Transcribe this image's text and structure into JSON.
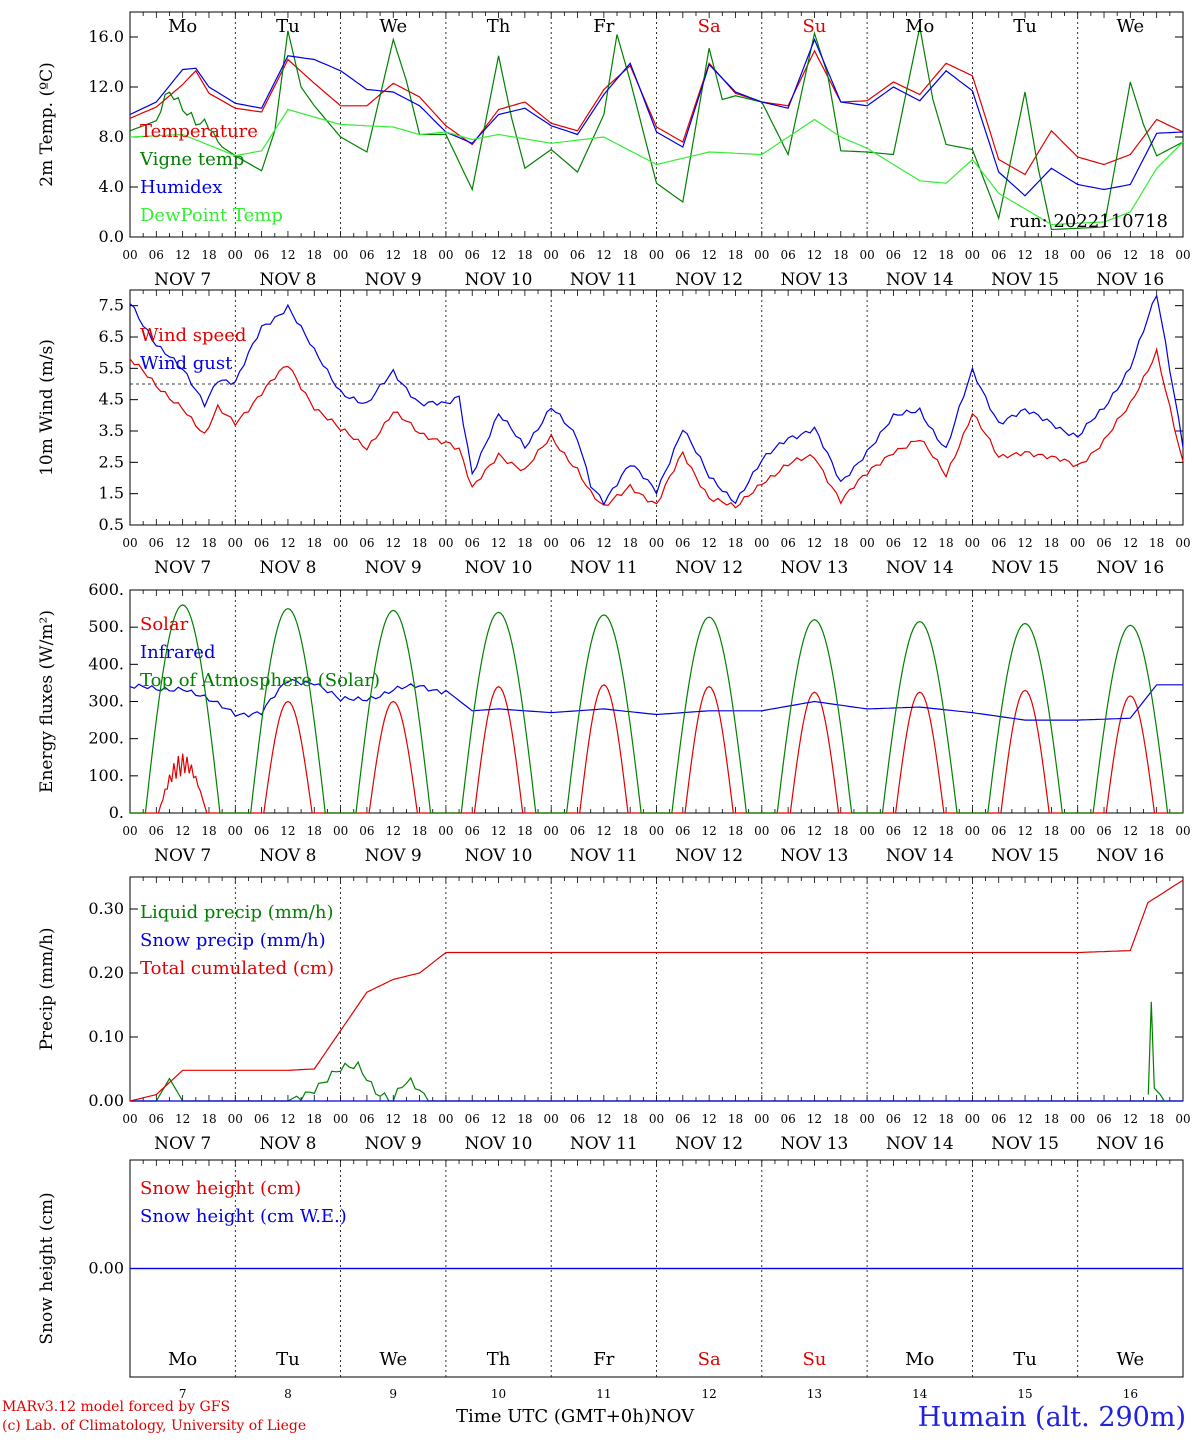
{
  "run_label": "run: 2022110718",
  "days": [
    "Mo",
    "Tu",
    "We",
    "Th",
    "Fr",
    "Sa",
    "Su",
    "Mo",
    "Tu",
    "We"
  ],
  "day_colors": [
    "#000",
    "#000",
    "#000",
    "#000",
    "#000",
    "#e00000",
    "#e00000",
    "#000",
    "#000",
    "#000"
  ],
  "date_labels": [
    "NOV  7",
    "NOV  8",
    "NOV  9",
    "NOV 10",
    "NOV 11",
    "NOV 12",
    "NOV 13",
    "NOV 14",
    "NOV 15",
    "NOV 16"
  ],
  "day_numbers": [
    "7",
    "8",
    "9",
    "10",
    "11",
    "12",
    "13",
    "14",
    "15",
    "16"
  ],
  "hour_ticks": [
    "00",
    "06",
    "12",
    "18"
  ],
  "footer": {
    "line1": "MARv3.12 model forced by GFS",
    "line2": "(c) Lab. of Climatology, University of Liege",
    "xlabel": "Time UTC (GMT+0h)",
    "month": "NOV",
    "location": "Humain (alt. 290m)"
  },
  "chart_data": [
    {
      "type": "line",
      "ylabel": "2m Temp. (ºC)",
      "yticks": [
        "0.0",
        "4.0",
        "8.0",
        "12.0",
        "16.0"
      ],
      "ylim": [
        0,
        18
      ],
      "x_unit": "hours since 2022-11-07 00 UTC",
      "series": [
        {
          "name": "Temperature",
          "color": "#e00000",
          "x": [
            0,
            6,
            12,
            15,
            18,
            24,
            30,
            36,
            42,
            48,
            54,
            60,
            66,
            72,
            78,
            84,
            90,
            96,
            102,
            108,
            114,
            120,
            126,
            132,
            138,
            144,
            150,
            156,
            162,
            168,
            174,
            180,
            186,
            192,
            198,
            204,
            210,
            216,
            222,
            228,
            234,
            240
          ],
          "values": [
            9.5,
            10.4,
            12.2,
            13.3,
            11.5,
            10.3,
            10,
            14.2,
            12.3,
            10.5,
            10.5,
            12.3,
            11.2,
            8.9,
            7.4,
            10.2,
            10.8,
            9.1,
            8.5,
            11.8,
            13.7,
            8.8,
            7.6,
            13.9,
            11.5,
            10.8,
            10.5,
            14.9,
            10.8,
            10.9,
            12.4,
            11.4,
            13.9,
            12.9,
            6.2,
            5,
            8.5,
            6.4,
            5.8,
            6.6,
            9.4,
            8.4
          ]
        },
        {
          "name": "Vigne temp",
          "color": "#008000",
          "x": [
            0,
            6,
            9,
            12,
            15,
            18,
            21,
            24,
            30,
            33,
            36,
            39,
            42,
            48,
            54,
            60,
            63,
            66,
            72,
            78,
            84,
            87,
            90,
            96,
            102,
            108,
            111,
            114,
            120,
            126,
            132,
            135,
            138,
            144,
            150,
            156,
            159,
            162,
            168,
            174,
            180,
            183,
            186,
            192,
            198,
            204,
            207,
            210,
            216,
            222,
            228,
            231,
            234,
            240
          ],
          "values": [
            8.5,
            9.3,
            12,
            10.7,
            9.2,
            8.5,
            7.2,
            6.5,
            5.3,
            8.5,
            16.5,
            12,
            10.5,
            8,
            6.8,
            15.8,
            12.5,
            8.2,
            8.2,
            3.8,
            14.5,
            9.5,
            5.5,
            7,
            5.2,
            9.8,
            16.2,
            12.5,
            4.3,
            2.8,
            15.1,
            11,
            11.3,
            10.8,
            6.6,
            16.3,
            13,
            6.9,
            6.8,
            6.6,
            16.8,
            11,
            7.4,
            7,
            1.5,
            11.6,
            5.5,
            0.6,
            0.7,
            0.8,
            12.4,
            9,
            6.5,
            7.6
          ]
        },
        {
          "name": "Humidex",
          "color": "#0000e0",
          "x": [
            0,
            6,
            12,
            15,
            18,
            24,
            30,
            36,
            42,
            48,
            54,
            60,
            66,
            72,
            78,
            84,
            90,
            96,
            102,
            108,
            114,
            120,
            126,
            132,
            138,
            144,
            150,
            156,
            162,
            168,
            174,
            180,
            186,
            192,
            198,
            204,
            210,
            216,
            222,
            228,
            234,
            240
          ],
          "values": [
            9.8,
            10.8,
            13.4,
            13.5,
            12,
            10.7,
            10.3,
            14.5,
            14.2,
            13.3,
            11.8,
            11.6,
            10.5,
            8.4,
            7.5,
            9.8,
            10.3,
            8.9,
            8.2,
            11.4,
            13.9,
            8.4,
            7.2,
            13.8,
            11.6,
            10.8,
            10.3,
            15.8,
            10.8,
            10.5,
            12,
            10.9,
            13.3,
            11.7,
            5.2,
            3.3,
            5.5,
            4.2,
            3.8,
            4.2,
            8.3,
            8.4
          ]
        },
        {
          "name": "DewPoint Temp",
          "color": "#33ee33",
          "x": [
            0,
            12,
            24,
            30,
            36,
            48,
            60,
            66,
            72,
            78,
            84,
            96,
            108,
            120,
            132,
            144,
            156,
            162,
            168,
            180,
            186,
            192,
            198,
            210,
            222,
            228,
            234,
            240
          ],
          "values": [
            8,
            8.2,
            6.5,
            6.9,
            10.2,
            9,
            8.8,
            8.2,
            8.4,
            7.8,
            8.2,
            7.5,
            8,
            5.8,
            6.8,
            6.6,
            9.4,
            8,
            7.1,
            4.5,
            4.3,
            6.2,
            3.5,
            1,
            1.2,
            2,
            5.5,
            7.6
          ]
        }
      ]
    },
    {
      "type": "line",
      "ylabel": "10m Wind (m/s)",
      "yticks": [
        "0.5",
        "1.5",
        "2.5",
        "3.5",
        "4.5",
        "5.5",
        "6.5",
        "7.5"
      ],
      "ylim": [
        0.5,
        8
      ],
      "reference_line": 5,
      "series": [
        {
          "name": "Wind speed",
          "color": "#e00000",
          "x": [
            0,
            6,
            12,
            17,
            20,
            24,
            36,
            42,
            48,
            54,
            60,
            66,
            72,
            75,
            78,
            84,
            90,
            96,
            102,
            105,
            108,
            114,
            120,
            126,
            132,
            138,
            144,
            150,
            156,
            162,
            168,
            174,
            180,
            186,
            192,
            198,
            204,
            210,
            216,
            222,
            228,
            234,
            240
          ],
          "values": [
            5.8,
            4.9,
            4.3,
            3.3,
            4.2,
            3.8,
            5.6,
            4.3,
            3.5,
            3,
            4.1,
            3.4,
            3.2,
            2.9,
            1.6,
            2.8,
            2.2,
            3.3,
            2.3,
            1.5,
            1,
            1.8,
            1.1,
            2.8,
            1.4,
            1,
            1.9,
            2.4,
            2.7,
            1.3,
            2.1,
            2.9,
            3.2,
            2.1,
            4.1,
            2.6,
            2.9,
            2.6,
            2.4,
            3.2,
            4.3,
            6.1,
            2.4
          ]
        },
        {
          "name": "Wind gust",
          "color": "#0000e0",
          "x": [
            0,
            6,
            12,
            17,
            20,
            24,
            30,
            36,
            42,
            48,
            54,
            60,
            66,
            72,
            75,
            78,
            84,
            90,
            96,
            102,
            105,
            108,
            114,
            120,
            126,
            132,
            138,
            144,
            150,
            156,
            162,
            168,
            174,
            180,
            186,
            192,
            198,
            204,
            210,
            216,
            222,
            228,
            234,
            240
          ],
          "values": [
            7.6,
            6.3,
            5.4,
            4.4,
            5.2,
            5,
            6.8,
            7.5,
            6,
            4.8,
            4.3,
            5.4,
            4.4,
            4.3,
            4.6,
            2.2,
            4,
            3,
            4.3,
            3.2,
            1.8,
            1.3,
            2.4,
            1.6,
            3.6,
            2,
            1.3,
            2.5,
            3.3,
            3.6,
            1.8,
            2.9,
            3.9,
            4.2,
            2.9,
            5.4,
            3.8,
            4.1,
            3.8,
            3.3,
            4.2,
            5.6,
            7.8,
            3.1
          ]
        }
      ]
    },
    {
      "type": "line",
      "ylabel": "Energy fluxes (W/m²)",
      "yticks": [
        "0.",
        "100.",
        "200.",
        "300.",
        "400.",
        "500.",
        "600."
      ],
      "ylim": [
        0,
        600
      ],
      "series": [
        {
          "name": "Solar",
          "color": "#e00000",
          "day_peaks": [
            160,
            300,
            300,
            340,
            345,
            340,
            325,
            325,
            330,
            315
          ]
        },
        {
          "name": "Infrared",
          "color": "#0000e0",
          "x": [
            0,
            6,
            12,
            18,
            24,
            30,
            36,
            42,
            48,
            54,
            60,
            66,
            72,
            78,
            84,
            96,
            108,
            120,
            132,
            144,
            156,
            168,
            180,
            192,
            204,
            216,
            228,
            234,
            240
          ],
          "values": [
            340,
            330,
            340,
            300,
            270,
            270,
            355,
            355,
            300,
            310,
            330,
            340,
            330,
            275,
            280,
            270,
            280,
            265,
            275,
            275,
            300,
            280,
            285,
            270,
            250,
            250,
            255,
            345,
            345
          ]
        },
        {
          "name": "Top of Atmosphere (Solar)",
          "color": "#008000",
          "day_peaks": [
            560,
            550,
            545,
            540,
            533,
            527,
            520,
            515,
            510,
            505
          ]
        }
      ]
    },
    {
      "type": "line",
      "ylabel": "Precip (mm/h)",
      "yticks": [
        "0.00",
        "0.10",
        "0.20",
        "0.30"
      ],
      "ylim": [
        0,
        0.35
      ],
      "series": [
        {
          "name": "Liquid precip (mm/h)",
          "color": "#008000",
          "x": [
            0,
            6,
            9,
            12,
            24,
            36,
            40,
            44,
            48,
            52,
            54,
            56,
            60,
            62,
            64,
            66,
            68,
            70,
            72,
            240
          ],
          "values": [
            0,
            0,
            0.035,
            0,
            0,
            0,
            0.015,
            0.03,
            0.045,
            0.055,
            0.04,
            0.02,
            0,
            0.02,
            0.025,
            0.015,
            0,
            0,
            0,
            0
          ]
        },
        {
          "name": "Snow precip (mm/h)",
          "color": "#0000e0",
          "x": [
            0,
            240
          ],
          "values": [
            0,
            0
          ]
        },
        {
          "name": "Total cumulated (cm)",
          "color": "#e00000",
          "x": [
            0,
            6,
            12,
            18,
            24,
            36,
            42,
            48,
            54,
            60,
            66,
            72,
            108,
            144,
            180,
            216,
            228,
            232,
            240
          ],
          "values": [
            0,
            0.01,
            0.048,
            0.048,
            0.048,
            0.048,
            0.05,
            0.11,
            0.17,
            0.19,
            0.2,
            0.232,
            0.232,
            0.232,
            0.232,
            0.232,
            0.235,
            0.31,
            0.345
          ]
        }
      ],
      "extra_spikes": [
        {
          "x": 233,
          "value": 0.155
        }
      ]
    },
    {
      "type": "line",
      "ylabel": "Snow height (cm)",
      "yticks": [
        "0.00"
      ],
      "ylim": [
        -1,
        1
      ],
      "series": [
        {
          "name": "Snow height (cm)",
          "color": "#e00000",
          "x": [
            0,
            240
          ],
          "values": [
            0,
            0
          ]
        },
        {
          "name": "Snow height (cm W.E.)",
          "color": "#0000e0",
          "x": [
            0,
            240
          ],
          "values": [
            0,
            0
          ]
        }
      ]
    }
  ]
}
